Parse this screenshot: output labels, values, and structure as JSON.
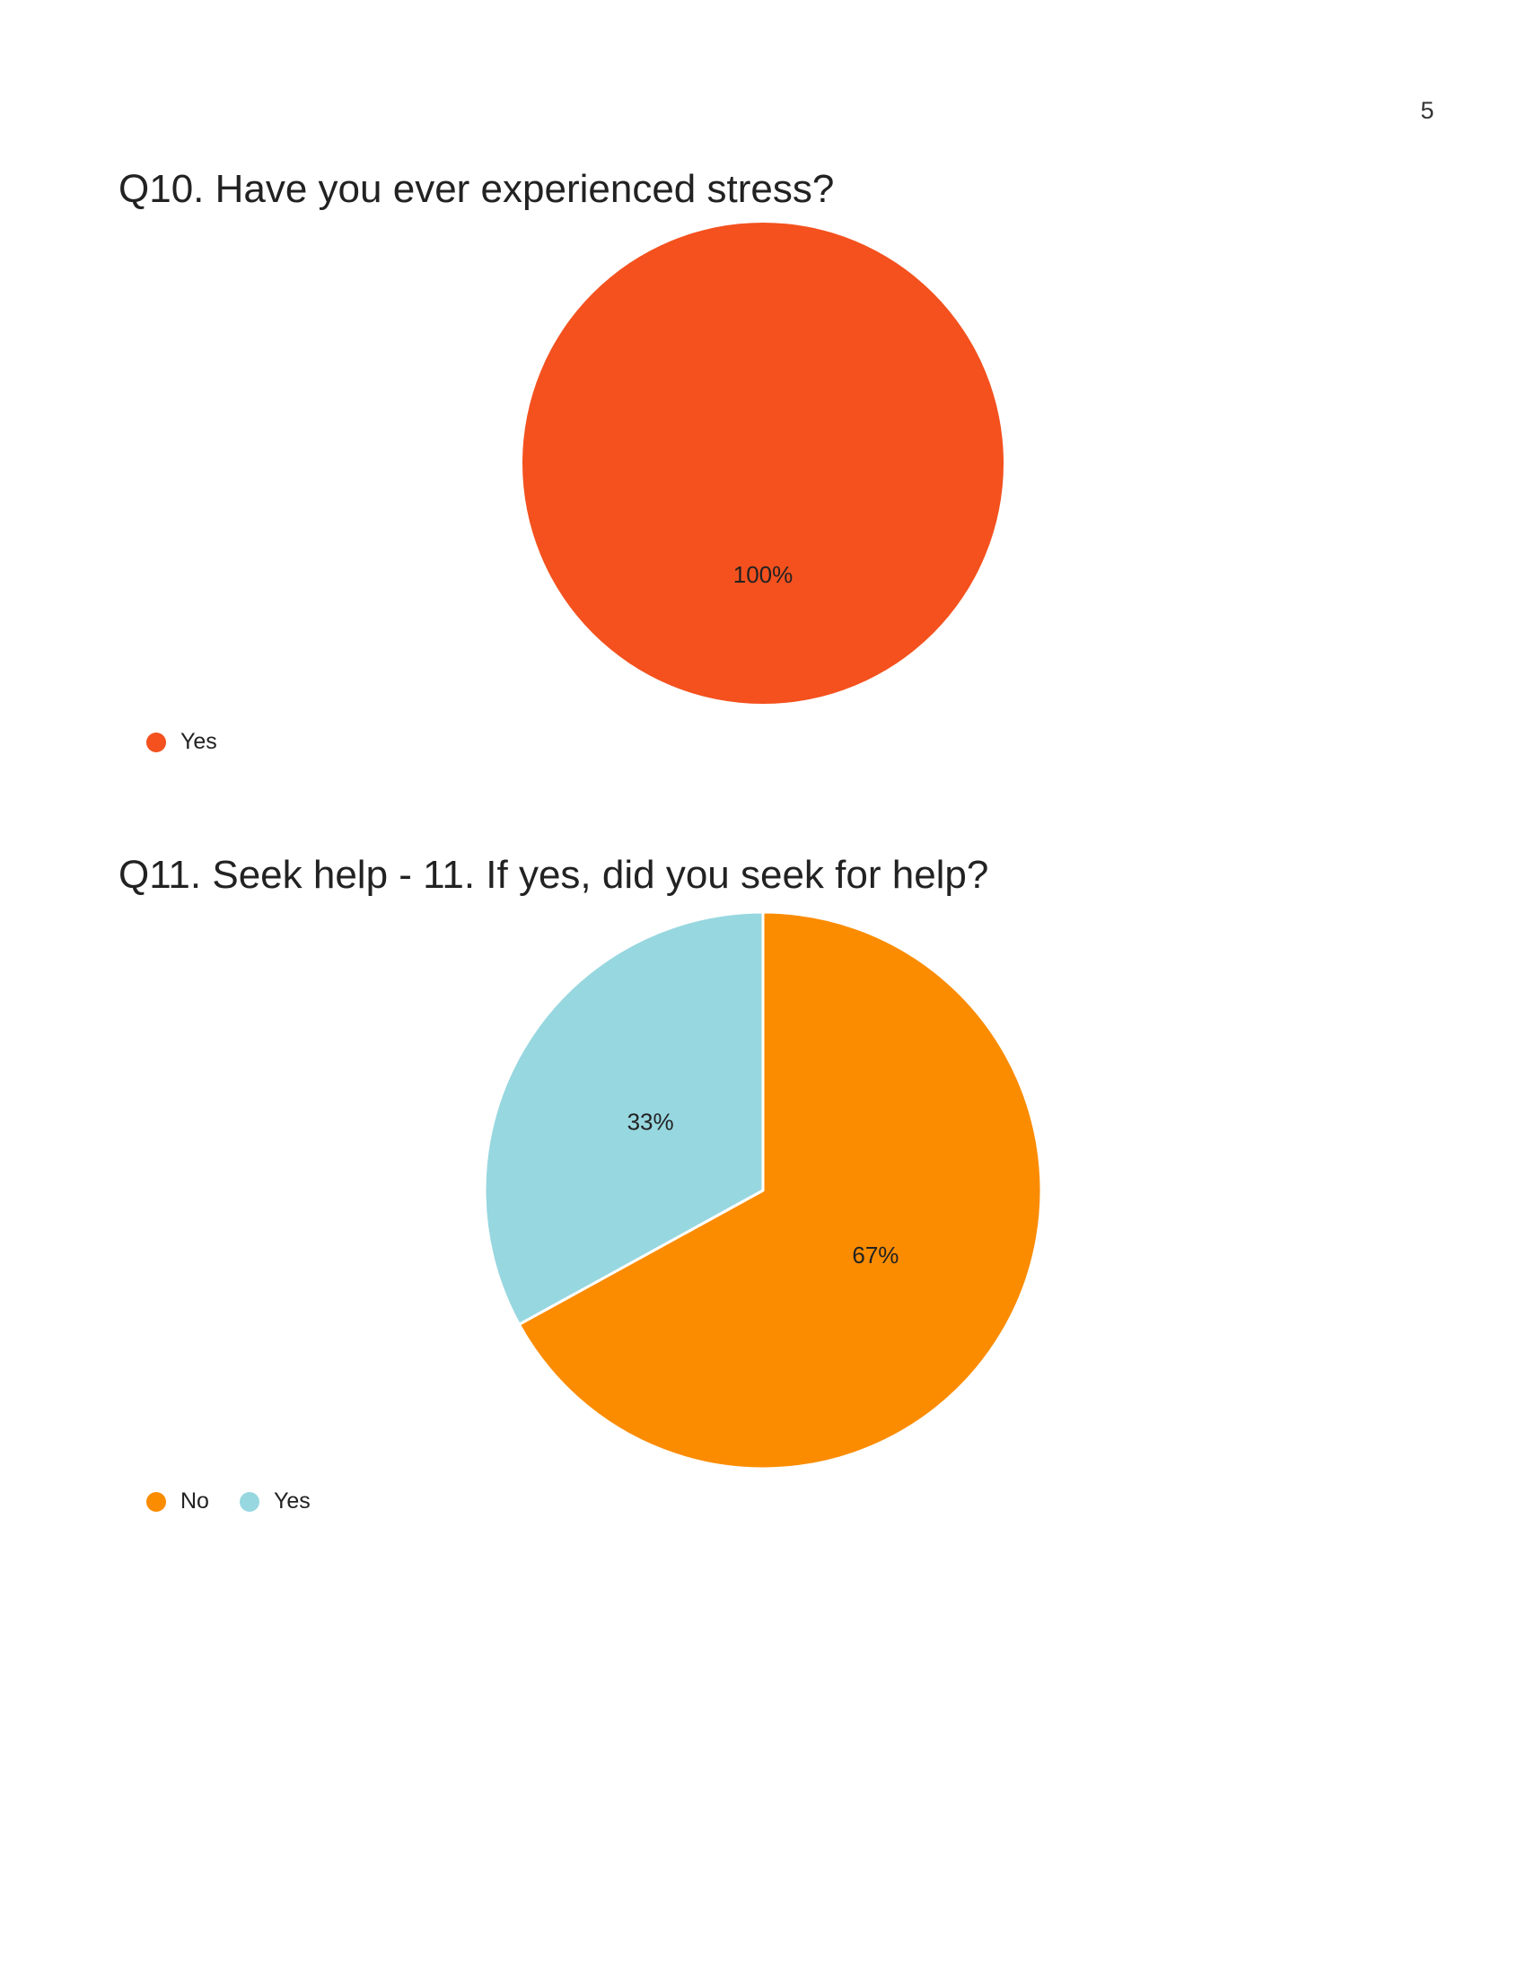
{
  "page": {
    "number": "5"
  },
  "chart_data": [
    {
      "type": "pie",
      "title": "Q10. Have you ever experienced stress?",
      "categories": [
        "Yes"
      ],
      "values": [
        100
      ],
      "labels": [
        "100%"
      ],
      "colors": [
        "#f4511e"
      ],
      "legend_position": "bottom-left"
    },
    {
      "type": "pie",
      "title": "Q11. Seek help - 11. If yes, did you seek for help?",
      "categories": [
        "No",
        "Yes"
      ],
      "values": [
        67,
        33
      ],
      "labels": [
        "67%",
        "33%"
      ],
      "colors": [
        "#fb8c00",
        "#97d7e0"
      ],
      "legend_position": "bottom-left"
    }
  ]
}
